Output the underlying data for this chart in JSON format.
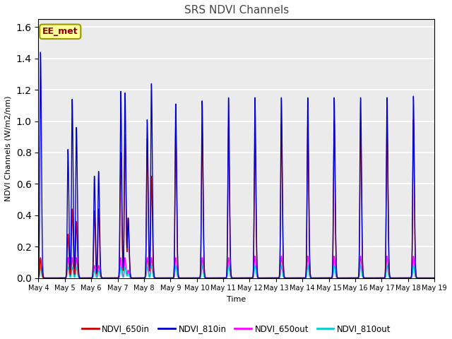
{
  "title": "SRS NDVI Channels",
  "ylabel": "NDVI Channels (W/m2/nm)",
  "xlabel": "Time",
  "ylim": [
    0,
    1.65
  ],
  "yticks": [
    0.0,
    0.2,
    0.4,
    0.6,
    0.8,
    1.0,
    1.2,
    1.4,
    1.6
  ],
  "background_color": "#ebebeb",
  "annotation_text": "EE_met",
  "annotation_bg": "#ffff99",
  "annotation_border": "#999900",
  "series": {
    "NDVI_650in": {
      "color": "#cc0000",
      "lw": 1.0
    },
    "NDVI_810in": {
      "color": "#0000cc",
      "lw": 1.0
    },
    "NDVI_650out": {
      "color": "#ff00ff",
      "lw": 1.0
    },
    "NDVI_810out": {
      "color": "#00cccc",
      "lw": 1.0
    }
  },
  "peaks": [
    {
      "day": 4.08,
      "ndvi650in": 0.13,
      "ndvi810in": 1.44,
      "ndvi650out": 0.12,
      "ndvi810out": 0.07
    },
    {
      "day": 5.12,
      "ndvi650in": 0.28,
      "ndvi810in": 0.82,
      "ndvi650out": 0.13,
      "ndvi810out": 0.07
    },
    {
      "day": 5.28,
      "ndvi650in": 0.44,
      "ndvi810in": 1.14,
      "ndvi650out": 0.13,
      "ndvi810out": 0.07
    },
    {
      "day": 5.44,
      "ndvi650in": 0.36,
      "ndvi810in": 0.96,
      "ndvi650out": 0.13,
      "ndvi810out": 0.07
    },
    {
      "day": 6.12,
      "ndvi650in": 0.43,
      "ndvi810in": 0.65,
      "ndvi650out": 0.08,
      "ndvi810out": 0.05
    },
    {
      "day": 6.28,
      "ndvi650in": 0.44,
      "ndvi810in": 0.68,
      "ndvi650out": 0.08,
      "ndvi810out": 0.05
    },
    {
      "day": 7.12,
      "ndvi650in": 0.8,
      "ndvi810in": 1.19,
      "ndvi650out": 0.13,
      "ndvi810out": 0.07
    },
    {
      "day": 7.28,
      "ndvi650in": 0.91,
      "ndvi810in": 1.18,
      "ndvi650out": 0.13,
      "ndvi810out": 0.07
    },
    {
      "day": 7.4,
      "ndvi650in": 0.38,
      "ndvi810in": 0.38,
      "ndvi650out": 0.05,
      "ndvi810out": 0.03
    },
    {
      "day": 8.12,
      "ndvi650in": 0.89,
      "ndvi810in": 1.01,
      "ndvi650out": 0.13,
      "ndvi810out": 0.07
    },
    {
      "day": 8.28,
      "ndvi650in": 0.65,
      "ndvi810in": 1.24,
      "ndvi650out": 0.13,
      "ndvi810out": 0.08
    },
    {
      "day": 9.2,
      "ndvi650in": 0.96,
      "ndvi810in": 1.11,
      "ndvi650out": 0.13,
      "ndvi810out": 0.08
    },
    {
      "day": 10.2,
      "ndvi650in": 0.95,
      "ndvi810in": 1.13,
      "ndvi650out": 0.13,
      "ndvi810out": 0.08
    },
    {
      "day": 11.2,
      "ndvi650in": 0.97,
      "ndvi810in": 1.15,
      "ndvi650out": 0.13,
      "ndvi810out": 0.08
    },
    {
      "day": 12.2,
      "ndvi650in": 0.92,
      "ndvi810in": 1.15,
      "ndvi650out": 0.14,
      "ndvi810out": 0.08
    },
    {
      "day": 13.2,
      "ndvi650in": 0.98,
      "ndvi810in": 1.15,
      "ndvi650out": 0.14,
      "ndvi810out": 0.08
    },
    {
      "day": 14.2,
      "ndvi650in": 0.98,
      "ndvi810in": 1.15,
      "ndvi650out": 0.14,
      "ndvi810out": 0.08
    },
    {
      "day": 15.2,
      "ndvi650in": 1.0,
      "ndvi810in": 1.15,
      "ndvi650out": 0.14,
      "ndvi810out": 0.08
    },
    {
      "day": 16.2,
      "ndvi650in": 0.99,
      "ndvi810in": 1.15,
      "ndvi650out": 0.14,
      "ndvi810out": 0.08
    },
    {
      "day": 17.2,
      "ndvi650in": 1.0,
      "ndvi810in": 1.15,
      "ndvi650out": 0.14,
      "ndvi810out": 0.08
    },
    {
      "day": 18.2,
      "ndvi650in": 1.01,
      "ndvi810in": 1.16,
      "ndvi650out": 0.14,
      "ndvi810out": 0.08
    }
  ],
  "xtick_days": [
    4,
    5,
    6,
    7,
    8,
    9,
    10,
    11,
    12,
    13,
    14,
    15,
    16,
    17,
    18,
    19
  ],
  "xtick_labels": [
    "May 4",
    "May 5",
    "May 6",
    "May 7",
    "May 8",
    "May 9",
    "May 10",
    "May 11",
    "May 12",
    "May 13",
    "May 14",
    "May 15",
    "May 16",
    "May 17",
    "May 18",
    "May 19"
  ]
}
